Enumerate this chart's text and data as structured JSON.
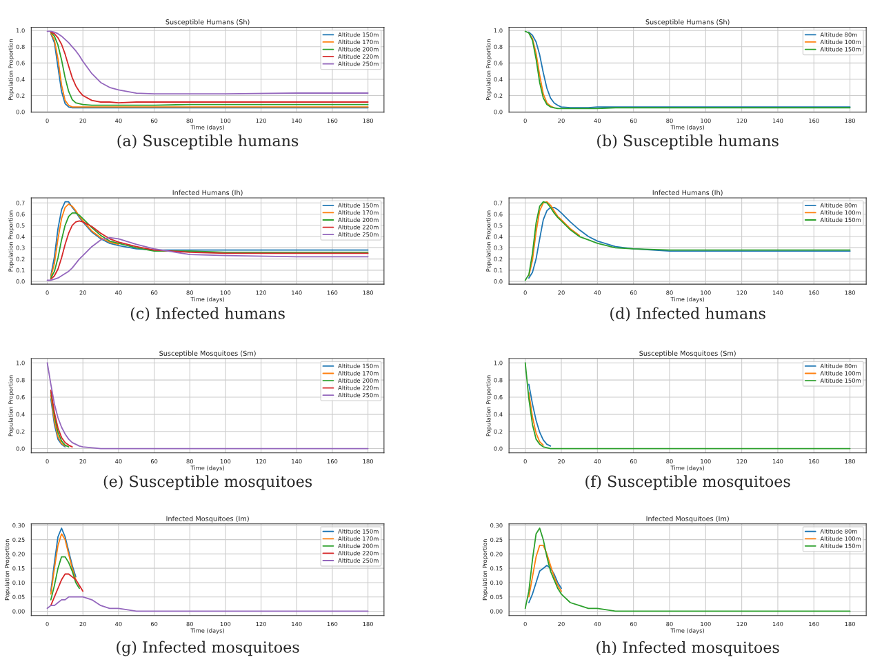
{
  "chart_data": [
    {
      "type": "line",
      "title": "Susceptible Humans (Sh)",
      "xlabel": "Time (days)",
      "ylabel": "Population Proportion",
      "annotations": [
        "(a) Susceptible humans"
      ],
      "grid": true,
      "legend": "top right",
      "line_style": "solid",
      "xlim": [
        -9,
        189
      ],
      "xticks": [
        0,
        20,
        40,
        60,
        80,
        100,
        120,
        140,
        160,
        180
      ],
      "ylim": [
        -0.005,
        1.04
      ],
      "yticks": [
        {
          "value": 0,
          "label": "0.0"
        },
        {
          "value": 0.2,
          "label": "0.2"
        },
        {
          "value": 0.4,
          "label": "0.4"
        },
        {
          "value": 0.6,
          "label": "0.6"
        },
        {
          "value": 0.8,
          "label": "0.8"
        },
        {
          "value": 1.0,
          "label": "1.0"
        }
      ],
      "x": [
        0,
        2,
        4,
        6,
        8,
        10,
        12,
        14,
        16,
        18,
        20,
        25,
        30,
        35,
        40,
        50,
        60,
        80,
        100,
        140,
        180
      ],
      "series": [
        {
          "name": "Altitude 150m",
          "color": "#1f77b4",
          "values": [
            null,
            0.96,
            0.85,
            0.55,
            0.25,
            0.1,
            0.06,
            0.05,
            0.05,
            0.05,
            0.05,
            0.05,
            0.05,
            0.05,
            0.05,
            0.05,
            0.05,
            0.05,
            0.05,
            0.05,
            0.05
          ]
        },
        {
          "name": "Altitude 170m",
          "color": "#ff7f0e",
          "values": [
            null,
            0.97,
            0.88,
            0.65,
            0.33,
            0.14,
            0.08,
            0.06,
            0.06,
            0.06,
            0.06,
            0.06,
            0.06,
            0.06,
            0.06,
            0.06,
            0.06,
            0.06,
            0.06,
            0.06,
            0.06
          ]
        },
        {
          "name": "Altitude 200m",
          "color": "#2ca02c",
          "values": [
            null,
            0.98,
            0.93,
            0.82,
            0.64,
            0.42,
            0.25,
            0.15,
            0.11,
            0.1,
            0.09,
            0.08,
            0.08,
            0.08,
            0.08,
            0.08,
            0.08,
            0.09,
            0.09,
            0.09,
            0.09
          ]
        },
        {
          "name": "Altitude 220m",
          "color": "#d62728",
          "values": [
            null,
            0.98,
            0.96,
            0.91,
            0.83,
            0.71,
            0.56,
            0.42,
            0.32,
            0.25,
            0.2,
            0.14,
            0.12,
            0.12,
            0.11,
            0.12,
            0.12,
            0.12,
            0.12,
            0.12,
            0.12
          ]
        },
        {
          "name": "Altitude 250m",
          "color": "#9467bd",
          "values": [
            0.99,
            0.99,
            0.98,
            0.96,
            0.93,
            0.89,
            0.85,
            0.8,
            0.75,
            0.69,
            0.62,
            0.47,
            0.36,
            0.3,
            0.27,
            0.23,
            0.22,
            0.22,
            0.22,
            0.23,
            0.23
          ]
        }
      ]
    },
    {
      "type": "line",
      "title": "Susceptible Humans (Sh)",
      "xlabel": "Time (days)",
      "ylabel": "Population Proportion",
      "annotations": [
        "(b) Susceptible humans"
      ],
      "grid": true,
      "legend": "top right",
      "line_style": "solid",
      "xlim": [
        -9,
        189
      ],
      "xticks": [
        0,
        20,
        40,
        60,
        80,
        100,
        120,
        140,
        160,
        180
      ],
      "ylim": [
        -0.005,
        1.04
      ],
      "yticks": [
        {
          "value": 0,
          "label": "0.0"
        },
        {
          "value": 0.2,
          "label": "0.2"
        },
        {
          "value": 0.4,
          "label": "0.4"
        },
        {
          "value": 0.6,
          "label": "0.6"
        },
        {
          "value": 0.8,
          "label": "0.8"
        },
        {
          "value": 1.0,
          "label": "1.0"
        }
      ],
      "x": [
        0,
        2,
        4,
        6,
        8,
        10,
        12,
        14,
        16,
        18,
        20,
        25,
        30,
        35,
        40,
        50,
        60,
        80,
        100,
        140,
        180
      ],
      "series": [
        {
          "name": "Altitude 80m",
          "color": "#1f77b4",
          "values": [
            null,
            0.98,
            0.94,
            0.86,
            0.7,
            0.48,
            0.29,
            0.17,
            0.11,
            0.08,
            0.06,
            0.05,
            0.05,
            0.05,
            0.06,
            0.06,
            0.06,
            0.06,
            0.06,
            0.06,
            0.06
          ]
        },
        {
          "name": "Altitude 100m",
          "color": "#ff7f0e",
          "values": [
            null,
            0.97,
            0.9,
            0.72,
            0.45,
            0.22,
            0.11,
            0.07,
            0.05,
            null,
            null,
            null,
            null,
            null,
            null,
            null,
            null,
            null,
            null,
            null,
            null
          ]
        },
        {
          "name": "Altitude 150m",
          "color": "#2ca02c",
          "values": [
            0.99,
            0.97,
            0.88,
            0.65,
            0.36,
            0.17,
            0.09,
            0.06,
            0.05,
            0.04,
            0.04,
            0.04,
            0.04,
            0.04,
            0.04,
            0.05,
            0.05,
            0.05,
            0.05,
            0.05,
            0.05
          ]
        }
      ]
    },
    {
      "type": "line",
      "title": "Infected Humans (Ih)",
      "xlabel": "Time (days)",
      "ylabel": "Population Proportion",
      "annotations": [
        "(c) Infected humans"
      ],
      "grid": true,
      "legend": "top right",
      "line_style": "solid",
      "xlim": [
        -9,
        189
      ],
      "xticks": [
        0,
        20,
        40,
        60,
        80,
        100,
        120,
        140,
        160,
        180
      ],
      "ylim": [
        -0.025,
        0.745
      ],
      "yticks": [
        {
          "value": 0,
          "label": "0.0"
        },
        0.1,
        0.2,
        0.3,
        0.4,
        0.5,
        0.6,
        0.7
      ],
      "x": [
        0,
        2,
        4,
        6,
        8,
        10,
        12,
        14,
        16,
        18,
        20,
        25,
        30,
        35,
        40,
        50,
        60,
        80,
        100,
        140,
        180
      ],
      "series": [
        {
          "name": "Altitude 150m",
          "color": "#1f77b4",
          "values": [
            null,
            0.05,
            0.22,
            0.47,
            0.64,
            0.71,
            0.71,
            0.66,
            0.62,
            0.57,
            0.53,
            0.44,
            0.38,
            0.34,
            0.32,
            0.29,
            0.28,
            0.28,
            0.28,
            0.28,
            0.28
          ]
        },
        {
          "name": "Altitude 170m",
          "color": "#ff7f0e",
          "values": [
            null,
            0.04,
            0.16,
            0.38,
            0.56,
            0.66,
            0.69,
            0.67,
            0.63,
            0.58,
            0.54,
            0.45,
            0.39,
            0.35,
            0.33,
            null,
            null,
            null,
            null,
            null,
            null
          ]
        },
        {
          "name": "Altitude 200m",
          "color": "#2ca02c",
          "values": [
            null,
            0.03,
            0.09,
            0.21,
            0.37,
            0.5,
            0.58,
            0.61,
            0.61,
            0.59,
            0.56,
            0.48,
            0.41,
            0.36,
            0.34,
            0.3,
            0.27,
            0.27,
            0.26,
            0.26,
            0.26
          ]
        },
        {
          "name": "Altitude 220m",
          "color": "#d62728",
          "values": [
            null,
            0.02,
            0.05,
            0.11,
            0.21,
            0.33,
            0.43,
            0.5,
            0.53,
            0.54,
            0.53,
            0.49,
            0.43,
            0.38,
            0.35,
            0.31,
            0.28,
            0.26,
            0.25,
            0.25,
            0.25
          ]
        },
        {
          "name": "Altitude 250m",
          "color": "#9467bd",
          "values": [
            0.01,
            0.01,
            0.02,
            0.03,
            0.05,
            0.07,
            0.09,
            0.12,
            0.16,
            0.2,
            0.23,
            0.31,
            0.37,
            0.39,
            0.38,
            0.33,
            0.29,
            0.24,
            0.23,
            0.22,
            0.22
          ]
        }
      ]
    },
    {
      "type": "line",
      "title": "Infected Humans (Ih)",
      "xlabel": "Time (days)",
      "ylabel": "Population Proportion",
      "annotations": [
        "(d) Infected humans"
      ],
      "grid": true,
      "legend": "top right",
      "line_style": "solid",
      "xlim": [
        -9,
        189
      ],
      "xticks": [
        0,
        20,
        40,
        60,
        80,
        100,
        120,
        140,
        160,
        180
      ],
      "ylim": [
        -0.025,
        0.745
      ],
      "yticks": [
        {
          "value": 0,
          "label": "0.0"
        },
        0.1,
        0.2,
        0.3,
        0.4,
        0.5,
        0.6,
        0.7
      ],
      "x": [
        0,
        2,
        4,
        6,
        8,
        10,
        12,
        14,
        16,
        18,
        20,
        25,
        30,
        35,
        40,
        50,
        60,
        80,
        100,
        140,
        180
      ],
      "series": [
        {
          "name": "Altitude 80m",
          "color": "#1f77b4",
          "values": [
            null,
            0.03,
            0.08,
            0.2,
            0.38,
            0.55,
            0.63,
            0.66,
            0.66,
            0.64,
            0.61,
            0.53,
            0.46,
            0.4,
            0.36,
            0.31,
            0.29,
            0.27,
            0.27,
            0.27,
            0.27
          ]
        },
        {
          "name": "Altitude 100m",
          "color": "#ff7f0e",
          "values": [
            null,
            0.05,
            0.19,
            0.44,
            0.63,
            0.7,
            0.71,
            0.68,
            0.63,
            0.58,
            0.55,
            0.47,
            0.41,
            null,
            null,
            null,
            null,
            null,
            null,
            null,
            null
          ]
        },
        {
          "name": "Altitude 150m",
          "color": "#2ca02c",
          "values": [
            0.01,
            0.06,
            0.25,
            0.52,
            0.67,
            0.71,
            0.7,
            0.66,
            0.61,
            0.57,
            0.54,
            0.46,
            0.4,
            0.37,
            0.34,
            0.3,
            0.29,
            0.28,
            0.28,
            0.28,
            0.28
          ]
        }
      ]
    },
    {
      "type": "line",
      "title": "Susceptible Mosquitoes (Sm)",
      "xlabel": "Time (days)",
      "ylabel": "Population Proportion",
      "annotations": [
        "(e) Susceptible mosquitoes"
      ],
      "grid": true,
      "legend": "top right",
      "line_style": "solid",
      "xlim": [
        -9,
        189
      ],
      "xticks": [
        0,
        20,
        40,
        60,
        80,
        100,
        120,
        140,
        160,
        180
      ],
      "ylim": [
        -0.05,
        1.05
      ],
      "yticks": [
        {
          "value": 0,
          "label": "0.0"
        },
        {
          "value": 0.2,
          "label": "0.2"
        },
        {
          "value": 0.4,
          "label": "0.4"
        },
        {
          "value": 0.6,
          "label": "0.6"
        },
        {
          "value": 0.8,
          "label": "0.8"
        },
        {
          "value": 1.0,
          "label": "1.0"
        }
      ],
      "x": [
        0,
        2,
        4,
        6,
        8,
        10,
        12,
        14,
        16,
        18,
        20,
        25,
        30,
        35,
        40,
        50,
        60,
        80,
        100,
        140,
        180
      ],
      "series": [
        {
          "name": "Altitude 150m",
          "color": "#1f77b4",
          "values": [
            null,
            0.58,
            0.28,
            0.11,
            0.05,
            0.02,
            null,
            null,
            null,
            null,
            null,
            null,
            null,
            null,
            null,
            null,
            null,
            null,
            null,
            null,
            null
          ]
        },
        {
          "name": "Altitude 170m",
          "color": "#ff7f0e",
          "values": [
            null,
            0.62,
            0.32,
            0.14,
            0.06,
            0.03,
            null,
            null,
            null,
            null,
            null,
            null,
            null,
            null,
            null,
            null,
            null,
            null,
            null,
            null,
            null
          ]
        },
        {
          "name": "Altitude 200m",
          "color": "#2ca02c",
          "values": [
            null,
            0.66,
            0.38,
            0.19,
            0.09,
            0.04,
            0.02,
            null,
            null,
            null,
            null,
            null,
            null,
            null,
            null,
            null,
            null,
            null,
            null,
            null,
            null
          ]
        },
        {
          "name": "Altitude 220m",
          "color": "#d62728",
          "values": [
            null,
            0.68,
            0.42,
            0.24,
            0.13,
            0.07,
            0.04,
            0.02,
            null,
            null,
            null,
            null,
            null,
            null,
            null,
            null,
            null,
            null,
            null,
            null,
            null
          ]
        },
        {
          "name": "Altitude 250m",
          "color": "#9467bd",
          "values": [
            1.0,
            0.75,
            0.52,
            0.36,
            0.25,
            0.17,
            0.11,
            0.07,
            0.05,
            0.03,
            0.02,
            0.01,
            0,
            0,
            0,
            0,
            0,
            0,
            0,
            0,
            0
          ]
        }
      ]
    },
    {
      "type": "line",
      "title": "Susceptible Mosquitoes (Sm)",
      "xlabel": "Time (days)",
      "ylabel": "Population Proportion",
      "annotations": [
        "(f) Susceptible mosquitoes"
      ],
      "grid": true,
      "legend": "top right",
      "line_style": "solid",
      "xlim": [
        -9,
        189
      ],
      "xticks": [
        0,
        20,
        40,
        60,
        80,
        100,
        120,
        140,
        160,
        180
      ],
      "ylim": [
        -0.05,
        1.05
      ],
      "yticks": [
        {
          "value": 0,
          "label": "0.0"
        },
        {
          "value": 0.2,
          "label": "0.2"
        },
        {
          "value": 0.4,
          "label": "0.4"
        },
        {
          "value": 0.6,
          "label": "0.6"
        },
        {
          "value": 0.8,
          "label": "0.8"
        },
        {
          "value": 1.0,
          "label": "1.0"
        }
      ],
      "x": [
        0,
        2,
        4,
        6,
        8,
        10,
        12,
        14,
        16,
        18,
        20,
        25,
        30,
        35,
        40,
        50,
        60,
        80,
        100,
        140,
        180
      ],
      "series": [
        {
          "name": "Altitude 80m",
          "color": "#1f77b4",
          "values": [
            null,
            0.75,
            0.52,
            0.33,
            0.19,
            0.1,
            0.05,
            0.03,
            null,
            null,
            null,
            null,
            null,
            null,
            null,
            null,
            null,
            null,
            null,
            null,
            null
          ]
        },
        {
          "name": "Altitude 100m",
          "color": "#ff7f0e",
          "values": [
            null,
            0.65,
            0.37,
            0.18,
            0.08,
            0.04,
            null,
            null,
            null,
            null,
            null,
            null,
            null,
            null,
            null,
            null,
            null,
            null,
            null,
            null,
            null
          ]
        },
        {
          "name": "Altitude 150m",
          "color": "#2ca02c",
          "values": [
            1.0,
            0.58,
            0.28,
            0.11,
            0.05,
            0.02,
            0.01,
            0,
            0,
            0,
            0,
            0,
            0,
            0,
            0,
            0,
            0,
            0,
            0,
            0,
            0
          ]
        }
      ]
    },
    {
      "type": "line",
      "title": "Infected Mosquitoes (Im)",
      "xlabel": "Time (days)",
      "ylabel": "Population Proportion",
      "annotations": [
        "(g) Infected mosquitoes"
      ],
      "grid": true,
      "legend": "top right",
      "line_style": "solid",
      "xlim": [
        -9,
        189
      ],
      "xticks": [
        0,
        20,
        40,
        60,
        80,
        100,
        120,
        140,
        160,
        180
      ],
      "ylim": [
        -0.015,
        0.305
      ],
      "yticks": [
        {
          "value": 0,
          "label": "0.00"
        },
        0.05,
        {
          "value": 0.1,
          "label": "0.10"
        },
        0.15,
        {
          "value": 0.2,
          "label": "0.20"
        },
        0.25,
        {
          "value": 0.3,
          "label": "0.30"
        }
      ],
      "x": [
        0,
        2,
        4,
        6,
        8,
        10,
        12,
        14,
        16,
        18,
        20,
        25,
        30,
        35,
        40,
        50,
        60,
        80,
        100,
        140,
        180
      ],
      "series": [
        {
          "name": "Altitude 150m",
          "color": "#1f77b4",
          "values": [
            null,
            0.07,
            0.17,
            0.26,
            0.29,
            0.26,
            0.21,
            0.16,
            0.12,
            null,
            null,
            null,
            null,
            null,
            null,
            null,
            null,
            null,
            null,
            null,
            null
          ]
        },
        {
          "name": "Altitude 170m",
          "color": "#ff7f0e",
          "values": [
            null,
            0.06,
            0.15,
            0.23,
            0.27,
            0.25,
            0.2,
            0.15,
            0.11,
            null,
            null,
            null,
            null,
            null,
            null,
            null,
            null,
            null,
            null,
            null,
            null
          ]
        },
        {
          "name": "Altitude 200m",
          "color": "#2ca02c",
          "values": [
            null,
            0.04,
            0.09,
            0.15,
            0.19,
            0.19,
            0.17,
            0.14,
            0.1,
            0.08,
            null,
            null,
            null,
            null,
            null,
            null,
            null,
            null,
            null,
            null,
            null
          ]
        },
        {
          "name": "Altitude 220m",
          "color": "#d62728",
          "values": [
            null,
            0.02,
            0.05,
            0.08,
            0.11,
            0.13,
            0.13,
            0.12,
            0.11,
            0.09,
            0.07,
            null,
            null,
            null,
            null,
            null,
            null,
            null,
            null,
            null,
            null
          ]
        },
        {
          "name": "Altitude 250m",
          "color": "#9467bd",
          "values": [
            0.01,
            0.02,
            0.02,
            0.03,
            0.04,
            0.04,
            0.05,
            0.05,
            0.05,
            0.05,
            0.05,
            0.04,
            0.02,
            0.01,
            0.01,
            0,
            0,
            0,
            0,
            0,
            0
          ]
        }
      ]
    },
    {
      "type": "line",
      "title": "Infected Mosquitoes (Im)",
      "xlabel": "Time (days)",
      "ylabel": "Population Proportion",
      "annotations": [
        "(h) Infected mosquitoes"
      ],
      "grid": true,
      "legend": "top right",
      "line_style": "solid",
      "xlim": [
        -9,
        189
      ],
      "xticks": [
        0,
        20,
        40,
        60,
        80,
        100,
        120,
        140,
        160,
        180
      ],
      "ylim": [
        -0.015,
        0.305
      ],
      "yticks": [
        {
          "value": 0,
          "label": "0.00"
        },
        0.05,
        {
          "value": 0.1,
          "label": "0.10"
        },
        0.15,
        {
          "value": 0.2,
          "label": "0.20"
        },
        0.25,
        {
          "value": 0.3,
          "label": "0.30"
        }
      ],
      "x": [
        0,
        2,
        4,
        6,
        8,
        10,
        12,
        14,
        16,
        18,
        20,
        25,
        30,
        35,
        40,
        50,
        60,
        80,
        100,
        140,
        180
      ],
      "series": [
        {
          "name": "Altitude 80m",
          "color": "#1f77b4",
          "values": [
            null,
            0.03,
            0.06,
            0.1,
            0.14,
            0.15,
            0.16,
            0.15,
            0.13,
            0.1,
            0.08,
            null,
            null,
            null,
            null,
            null,
            null,
            null,
            null,
            null,
            null
          ]
        },
        {
          "name": "Altitude 100m",
          "color": "#ff7f0e",
          "values": [
            null,
            0.05,
            0.12,
            0.19,
            0.23,
            0.23,
            0.2,
            0.16,
            0.12,
            0.09,
            0.07,
            null,
            null,
            null,
            null,
            null,
            null,
            null,
            null,
            null,
            null
          ]
        },
        {
          "name": "Altitude 150m",
          "color": "#2ca02c",
          "values": [
            0.01,
            0.07,
            0.18,
            0.27,
            0.29,
            0.25,
            0.19,
            0.14,
            0.11,
            0.08,
            0.06,
            0.03,
            0.02,
            0.01,
            0.01,
            0,
            0,
            0,
            0,
            0,
            0
          ]
        }
      ]
    }
  ]
}
